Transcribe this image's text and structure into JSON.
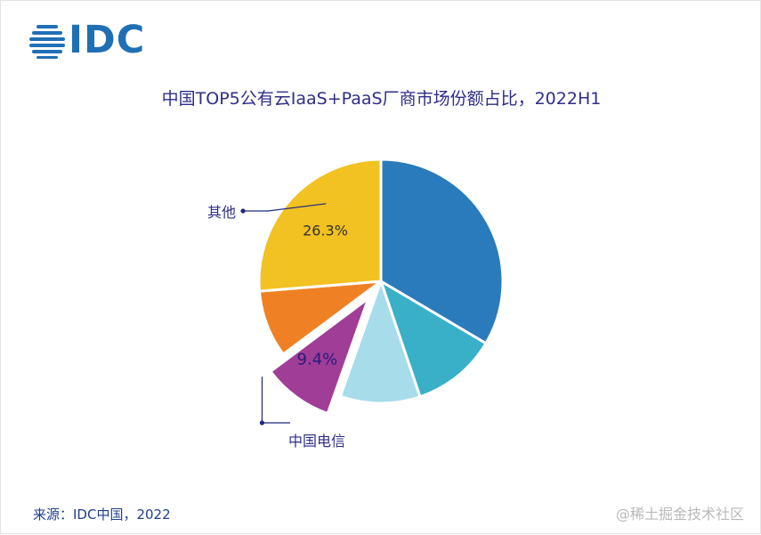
{
  "header": {
    "logo_text": "IDC",
    "title": "中国TOP5公有云IaaS+PaaS厂商市场份额占比，2022H1"
  },
  "footer": {
    "source": "来源：IDC中国，2022",
    "watermark": "@稀土掘金技术社区"
  },
  "colors": {
    "brand": "#1f6fb5",
    "title": "#2e2e8a",
    "leader": "#1f2a7a"
  },
  "chart_data": {
    "type": "pie",
    "title": "中国TOP5公有云IaaS+PaaS厂商市场份额占比，2022H1",
    "slices": [
      {
        "label": "",
        "value": 33.5,
        "color": "#2a7bbb",
        "pct_label": "",
        "callout": ""
      },
      {
        "label": "",
        "value": 11.3,
        "color": "#3ab0c8",
        "pct_label": "",
        "callout": ""
      },
      {
        "label": "",
        "value": 10.6,
        "color": "#a7dcea",
        "pct_label": "",
        "callout": ""
      },
      {
        "label": "中国电信",
        "value": 9.4,
        "color": "#a03d97",
        "pct_label": "9.4%",
        "callout": "中国电信",
        "exploded": true
      },
      {
        "label": "",
        "value": 8.9,
        "color": "#ef8124",
        "pct_label": "",
        "callout": ""
      },
      {
        "label": "其他",
        "value": 26.3,
        "color": "#f2c122",
        "pct_label": "26.3%",
        "callout": "其他"
      }
    ],
    "start_angle": "12 o'clock",
    "direction": "clockwise"
  }
}
